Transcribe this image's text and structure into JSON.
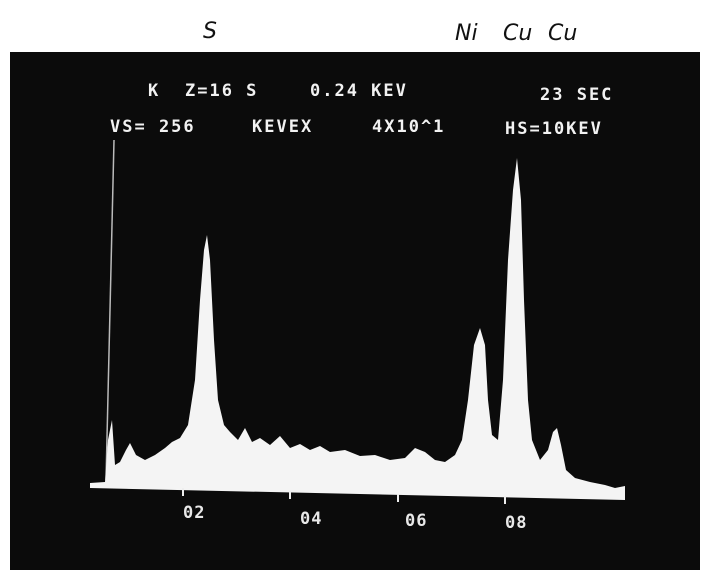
{
  "header": {
    "labels": [
      "S",
      "Ni",
      "Cu",
      "Cu"
    ]
  },
  "screen": {
    "line1": [
      "K",
      "Z=16 S",
      "0.24 KEV",
      "23 SEC"
    ],
    "line2": [
      "VS= 256",
      "KEVEX",
      "4X10^1",
      "HS=10KEV"
    ],
    "axis_labels": [
      "02",
      "04",
      "06",
      "08"
    ]
  }
}
